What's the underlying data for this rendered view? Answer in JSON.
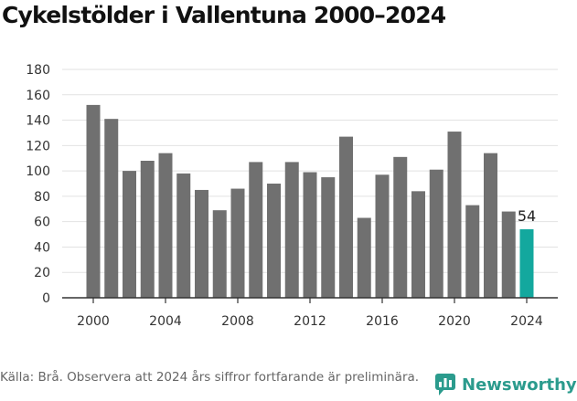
{
  "title": "Cykelstölder i Vallentuna 2000–2024",
  "source": "Källa: Brå. Observera att 2024 års siffror fortfarande är preliminära.",
  "brand": {
    "name": "Newsworthy",
    "icon": "newsworthy-logo-icon",
    "color": "#2b9b8d"
  },
  "chart_data": {
    "type": "bar",
    "title": "Cykelstölder i Vallentuna 2000–2024",
    "xlabel": "",
    "ylabel": "",
    "categories": [
      "2000",
      "2001",
      "2002",
      "2003",
      "2004",
      "2005",
      "2006",
      "2007",
      "2008",
      "2009",
      "2010",
      "2011",
      "2012",
      "2013",
      "2014",
      "2015",
      "2016",
      "2017",
      "2018",
      "2019",
      "2020",
      "2021",
      "2022",
      "2023",
      "2024"
    ],
    "values": [
      152,
      141,
      100,
      108,
      114,
      98,
      85,
      69,
      86,
      107,
      90,
      107,
      99,
      95,
      127,
      63,
      97,
      111,
      84,
      101,
      131,
      73,
      114,
      68,
      54
    ],
    "ylim": [
      0,
      180
    ],
    "yticks": [
      0,
      20,
      40,
      60,
      80,
      100,
      120,
      140,
      160,
      180
    ],
    "xticks": [
      "2000",
      "2004",
      "2008",
      "2012",
      "2016",
      "2020",
      "2024"
    ],
    "grid": true,
    "colors": {
      "bar": "#707070",
      "highlight": "#13a89e",
      "grid": "#e2e2e2"
    },
    "highlight_category": "2024",
    "annotations": [
      {
        "category": "2024",
        "text": "54"
      }
    ]
  }
}
